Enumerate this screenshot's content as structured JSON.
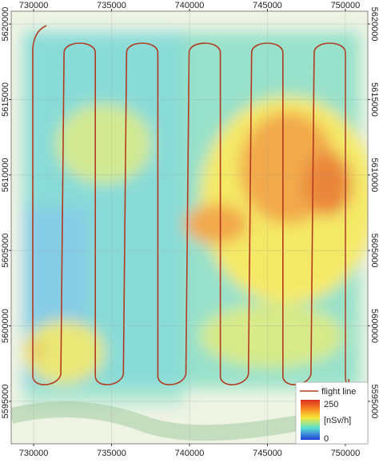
{
  "map": {
    "xlim": [
      728560,
      751440
    ],
    "ylim": [
      5592190,
      5620850
    ],
    "xticks": [
      730000,
      735000,
      740000,
      745000,
      750000
    ],
    "yticks": [
      5595000,
      5600000,
      5605000,
      5610000,
      5615000,
      5620000
    ],
    "grid": true,
    "legend": {
      "line": "flight line",
      "max": 250,
      "unit": "[nSv/h]",
      "min": 0
    }
  }
}
